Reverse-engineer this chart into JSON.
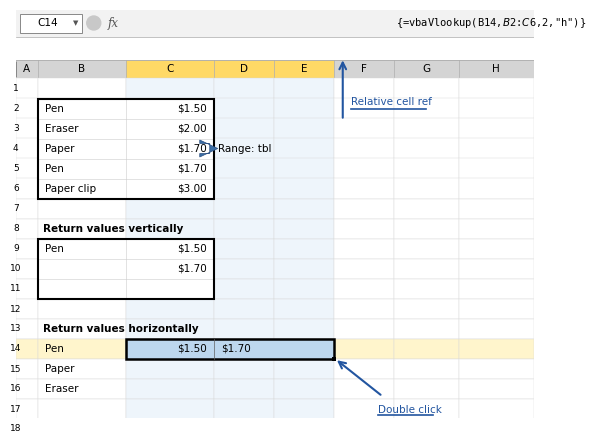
{
  "title_bar_text": "C14",
  "formula_text": "{=vbaVlookup(B14,$B$2:$C$6,2,\"h\")}",
  "col_headers": [
    "A",
    "B",
    "C",
    "D",
    "E",
    "F",
    "G",
    "H"
  ],
  "highlighted_cols": [
    "C",
    "D",
    "E"
  ],
  "highlighted_row": 14,
  "table1_data": [
    [
      "Pen",
      "$1.50"
    ],
    [
      "Eraser",
      "$2.00"
    ],
    [
      "Paper",
      "$1.70"
    ],
    [
      "Pen",
      "$1.70"
    ],
    [
      "Paper clip",
      "$3.00"
    ]
  ],
  "table1_rows": [
    2,
    3,
    4,
    5,
    6
  ],
  "table2_label": "Return values vertically",
  "table2_data": [
    [
      "Pen",
      "$1.50"
    ],
    [
      "",
      "$1.70"
    ],
    [
      "",
      ""
    ]
  ],
  "table2_rows": [
    9,
    10,
    11
  ],
  "table3_label": "Return values horizontally",
  "table3_rows": [
    14,
    15,
    16
  ],
  "table3_col_b": [
    "Pen",
    "Paper",
    "Eraser"
  ],
  "annotation_relative": "Relative cell ref",
  "annotation_double": "Double click",
  "annotation_range": "Range: tbl",
  "row14_c": "$1.50",
  "row14_d": "$1.70",
  "bg_color": "#FFFFFF",
  "col_highlight_bg": "#FFD966",
  "row_highlight_bg": "#FFD966",
  "cell_selected_bg": "#BDD7EE",
  "annotation_color": "#2255A0",
  "arrow_fill_color": "#3B6EA5",
  "font_size": 7.5,
  "header_font_size": 7.5,
  "num_rows": 18
}
